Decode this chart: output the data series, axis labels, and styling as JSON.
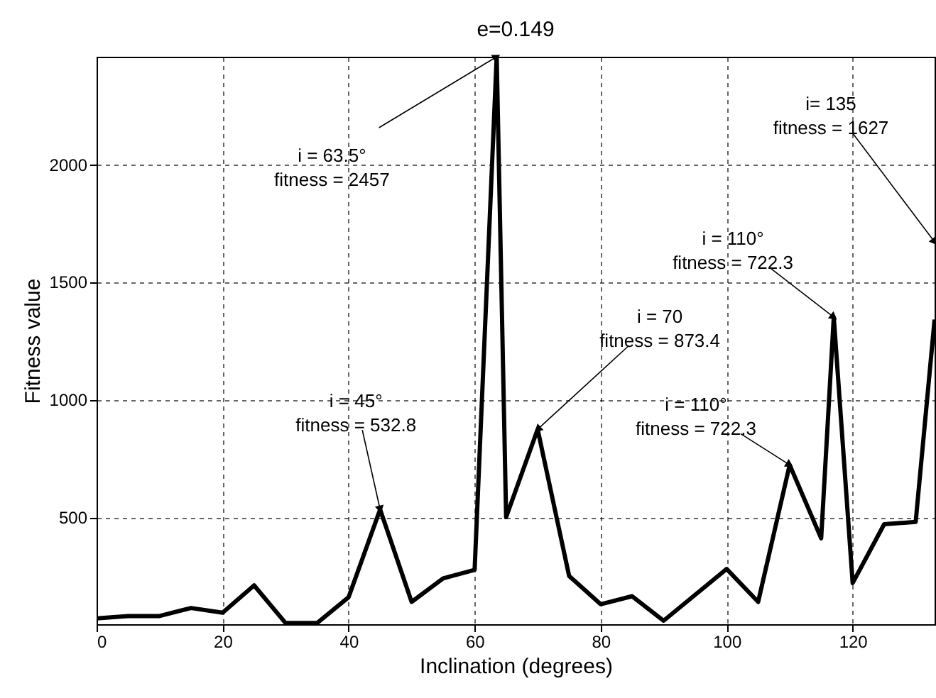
{
  "chart_data": {
    "type": "line",
    "title": "e=0.149",
    "xlabel": "Inclination (degrees)",
    "ylabel": "Fitness value",
    "x": [
      0,
      5,
      10,
      15,
      20,
      25,
      30,
      35,
      40,
      45,
      50,
      55,
      60,
      63.5,
      65,
      70,
      75,
      80,
      85,
      90,
      100,
      105,
      110,
      115,
      117,
      120,
      125,
      130,
      133
    ],
    "series": [
      {
        "color": "#000000",
        "values": [
          70,
          80,
          80,
          114,
          94,
          210,
          50,
          50,
          160,
          532.8,
          140,
          240,
          276,
          2457,
          500,
          873.4,
          250,
          130,
          164,
          60,
          280,
          140,
          722.3,
          410,
          1350,
          220,
          470,
          480,
          1340
        ]
      }
    ],
    "xlim": [
      0,
      133
    ],
    "ylim": [
      45,
      2457
    ],
    "xticks": [
      0,
      20,
      40,
      60,
      80,
      100,
      120
    ],
    "yticks": [
      500,
      1000,
      1500,
      2000
    ],
    "grid": true,
    "line_style": "solid",
    "annotations": [
      {
        "text": "i = 63.5°\nfitness = 2457",
        "x": 63.5,
        "y": 2457
      },
      {
        "text": "i = 45°\nfitness = 532.8",
        "x": 45,
        "y": 532.8
      },
      {
        "text": "i = 70\nfitness = 873.4",
        "x": 70,
        "y": 873.4
      },
      {
        "text": "i = 110°\nfitness = 722.3",
        "x": 110,
        "y": 722.3
      },
      {
        "text": "i = 110°\nfitness = 722.3",
        "x": 117,
        "y": 1350
      },
      {
        "text": "i= 135\nfitness = 1627",
        "x": 133,
        "y": 1670
      }
    ]
  }
}
